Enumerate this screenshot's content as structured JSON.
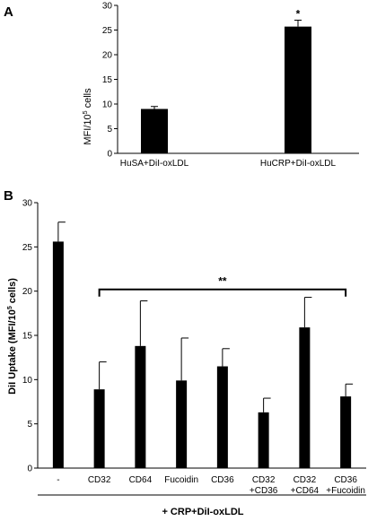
{
  "panel_a": {
    "label": "A",
    "ylabel_main": "MFI/10",
    "ylabel_exp": "5",
    "ylabel_tail": " cells",
    "significance": "*"
  },
  "panel_b": {
    "label": "B",
    "ylabel_main": "DiI Uptake (MFI/10",
    "ylabel_exp": "5",
    "ylabel_tail": " cells)",
    "bracket_label": "**",
    "bottom_label": "+ CRP+DiI-oxLDL"
  },
  "chart_data": [
    {
      "type": "bar",
      "panel": "A",
      "categories": [
        "HuSA+DiI-oxLDL",
        "HuCRP+DiI-oxLDL"
      ],
      "values": [
        9.0,
        25.7
      ],
      "errors": [
        0.5,
        1.3
      ],
      "annotations": [
        {
          "category": "HuCRP+DiI-oxLDL",
          "text": "*"
        }
      ],
      "ylabel": "MFI/10^5 cells",
      "ylim": [
        0,
        30
      ],
      "yticks": [
        0,
        5,
        10,
        15,
        20,
        25,
        30
      ],
      "grid": false
    },
    {
      "type": "bar",
      "panel": "B",
      "categories": [
        [
          "-"
        ],
        [
          "CD32"
        ],
        [
          "CD64"
        ],
        [
          "Fucoidin"
        ],
        [
          "CD36"
        ],
        [
          "CD32",
          "+CD36"
        ],
        [
          "CD32",
          "+CD64"
        ],
        [
          "CD36",
          "+Fucoidin"
        ]
      ],
      "values": [
        25.6,
        8.9,
        13.8,
        9.9,
        11.5,
        6.3,
        15.9,
        8.1
      ],
      "errors": [
        2.2,
        3.1,
        5.1,
        4.8,
        2.0,
        1.6,
        3.4,
        1.4
      ],
      "ylabel": "DiI Uptake (MFI/10^5 cells)",
      "xlabel": "+ CRP+DiI-oxLDL",
      "ylim": [
        0,
        30
      ],
      "yticks": [
        0,
        5,
        10,
        15,
        20,
        25,
        30
      ],
      "bracket": {
        "from_category": 1,
        "to_category": 7,
        "level": 20.2,
        "label": "**"
      },
      "grid": false
    }
  ]
}
